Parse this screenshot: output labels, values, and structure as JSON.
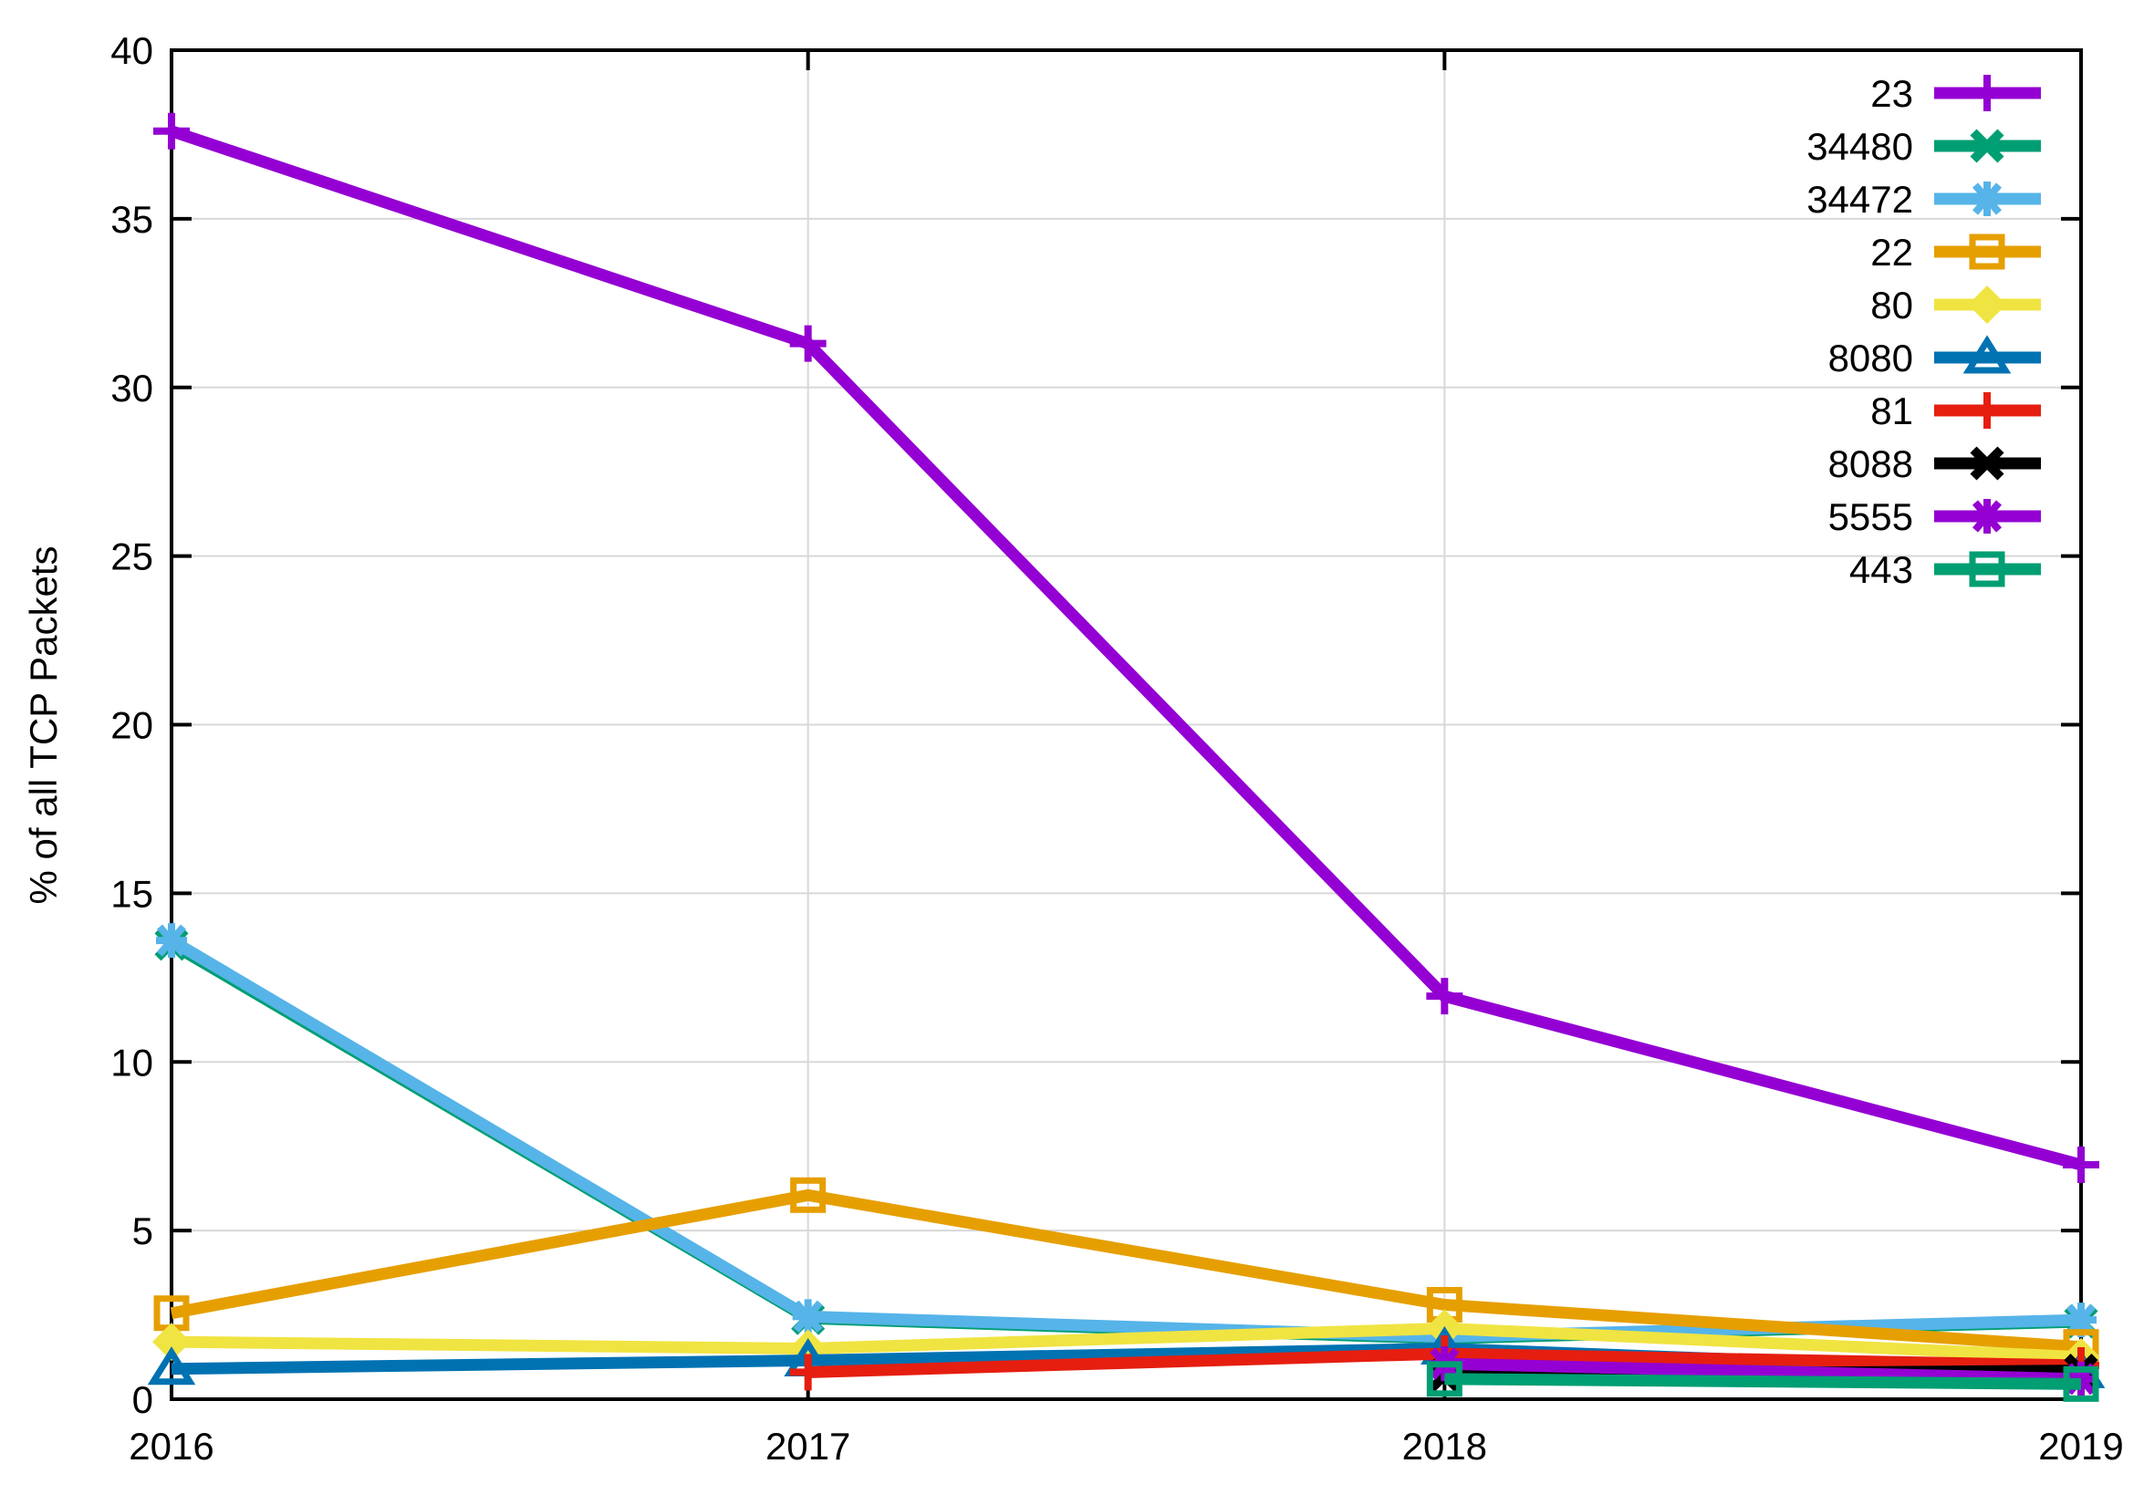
{
  "chart_data": {
    "type": "line",
    "title": "",
    "xlabel": "",
    "ylabel": "% of all TCP Packets",
    "x": [
      2016,
      2017,
      2018,
      2019
    ],
    "xlim": [
      2016,
      2019
    ],
    "ylim": [
      0,
      40
    ],
    "xticks": [
      2016,
      2017,
      2018,
      2019
    ],
    "yticks": [
      0,
      5,
      10,
      15,
      20,
      25,
      30,
      35,
      40
    ],
    "grid": true,
    "legend_position": "top-right-inside",
    "series": [
      {
        "name": "23",
        "color": "#9400d3",
        "marker": "plus",
        "values": [
          37.6,
          31.3,
          11.95,
          6.95
        ]
      },
      {
        "name": "34480",
        "color": "#009e73",
        "marker": "cross",
        "values": [
          13.5,
          2.4,
          1.8,
          2.3
        ]
      },
      {
        "name": "34472",
        "color": "#56b4e9",
        "marker": "asterisk",
        "values": [
          13.6,
          2.45,
          1.85,
          2.35
        ]
      },
      {
        "name": "22",
        "color": "#e69f00",
        "marker": "square-open",
        "values": [
          2.55,
          6.05,
          2.8,
          1.55
        ]
      },
      {
        "name": "80",
        "color": "#f0e442",
        "marker": "diamond-filled",
        "values": [
          1.7,
          1.5,
          2.1,
          1.25
        ]
      },
      {
        "name": "8080",
        "color": "#0072b2",
        "marker": "triangle-open",
        "values": [
          0.9,
          1.15,
          1.5,
          0.8
        ]
      },
      {
        "name": "81",
        "color": "#e51e10",
        "marker": "plus",
        "values": [
          null,
          0.8,
          1.35,
          1.0
        ]
      },
      {
        "name": "8088",
        "color": "#000000",
        "marker": "cross",
        "values": [
          null,
          null,
          0.7,
          0.85
        ]
      },
      {
        "name": "5555",
        "color": "#9400d3",
        "marker": "asterisk",
        "values": [
          null,
          null,
          1.05,
          0.6
        ]
      },
      {
        "name": "443",
        "color": "#009e73",
        "marker": "square-open",
        "values": [
          null,
          null,
          0.6,
          0.45
        ]
      }
    ],
    "colors": {
      "background": "#ffffff",
      "border": "#000000",
      "grid": "#d8d8d8",
      "text": "#000000"
    }
  }
}
